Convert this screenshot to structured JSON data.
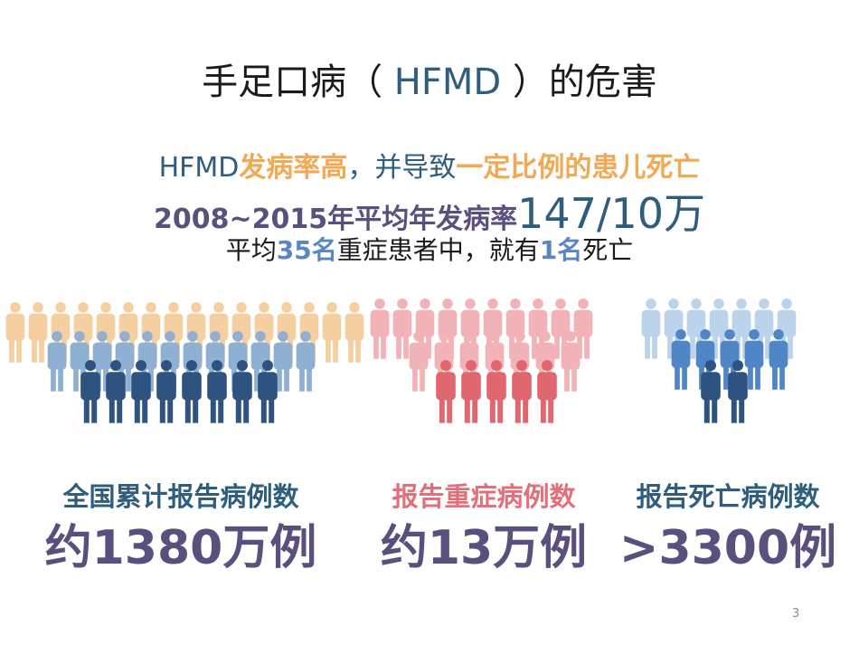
{
  "title": {
    "pre": "手足口病（ ",
    "acronym": "HFMD",
    "post": " ）的危害"
  },
  "line1": {
    "a": "HFMD",
    "b": "发病率高",
    "c": "，并导致",
    "d": "一定比例的患儿死亡"
  },
  "line2": {
    "a": "2008~2015年平均年发病率",
    "b": "147/10万"
  },
  "line3": {
    "a": "平均",
    "b": "35名",
    "c": "重症患者中，就有",
    "d": "1名",
    "e": "死亡"
  },
  "stats": [
    {
      "label": "全国累计报告病例数",
      "value": "约1380万例",
      "color": "#2e5d7e"
    },
    {
      "label": "报告重症病例数",
      "value": "约13万例",
      "color": "#e2707a"
    },
    {
      "label": "报告死亡病例数",
      "value": ">3300例",
      "color": "#2e5d7e"
    }
  ],
  "colors": {
    "peach": "#f5cf9f",
    "light_blue": "#8fb0d3",
    "dark_blue": "#2f5381",
    "pink": "#f2b3b8",
    "red": "#e06670",
    "pale_blue": "#bcd3ec",
    "mid_blue": "#4f86c6"
  },
  "page_number": "3"
}
